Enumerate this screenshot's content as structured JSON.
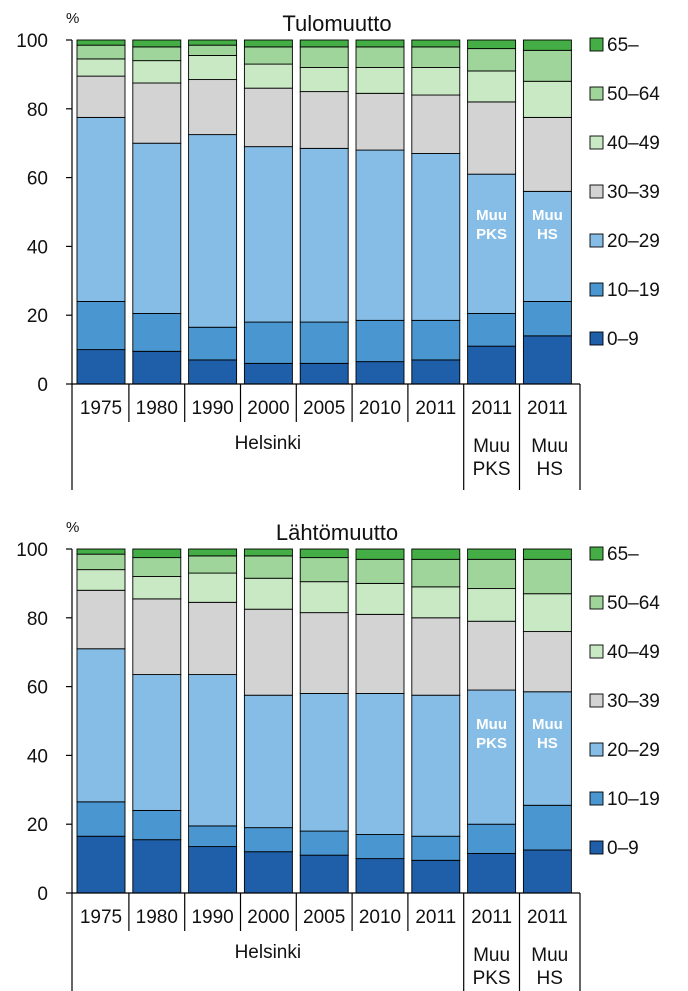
{
  "colors": {
    "0–9": "#1f5ea8",
    "10–19": "#4a96d1",
    "20–29": "#86bde6",
    "30–39": "#d3d3d3",
    "40–49": "#c9e8c4",
    "50–64": "#9fd49a",
    "65–": "#45ad45"
  },
  "chart_data": [
    {
      "type": "bar",
      "stacked": true,
      "title": "Tulomuutto",
      "ylabel": "%",
      "ylim": [
        0,
        100
      ],
      "yticks": [
        "0",
        "20",
        "40",
        "60",
        "80",
        "100"
      ],
      "categories": [
        "1975",
        "1980",
        "1990",
        "2000",
        "2005",
        "2010",
        "2011",
        "2011",
        "2011"
      ],
      "groups": [
        {
          "label": "Helsinki",
          "span": 7
        },
        {
          "label": "Muu\nPKS",
          "span": 1
        },
        {
          "label": "Muu\nHS",
          "span": 1
        }
      ],
      "bar_annotations": [
        {
          "bar": 7,
          "text": "Muu\nPKS"
        },
        {
          "bar": 8,
          "text": "Muu\nHS"
        }
      ],
      "legend_position": "right",
      "series": [
        {
          "name": "0–9",
          "values": [
            10,
            9.5,
            7,
            6,
            6,
            6.5,
            7,
            11,
            14
          ]
        },
        {
          "name": "10–19",
          "values": [
            14,
            11,
            9.5,
            12,
            12,
            12,
            11.5,
            9.5,
            10
          ]
        },
        {
          "name": "20–29",
          "values": [
            53.5,
            49.5,
            56,
            51,
            50.5,
            49.5,
            48.5,
            40.5,
            32
          ]
        },
        {
          "name": "30–39",
          "values": [
            12,
            17.5,
            16,
            17,
            16.5,
            16.5,
            17,
            21,
            21.5
          ]
        },
        {
          "name": "40–49",
          "values": [
            5,
            6.5,
            7,
            7,
            7,
            7.5,
            8,
            9,
            10.5
          ]
        },
        {
          "name": "50–64",
          "values": [
            4,
            4,
            3,
            5,
            6,
            6,
            6,
            6.5,
            9
          ]
        },
        {
          "name": "65–",
          "values": [
            1.5,
            2,
            1.5,
            2,
            2,
            2,
            2,
            2.5,
            3
          ]
        }
      ]
    },
    {
      "type": "bar",
      "stacked": true,
      "title": "Lähtömuutto",
      "ylabel": "%",
      "ylim": [
        0,
        100
      ],
      "yticks": [
        "0",
        "20",
        "40",
        "60",
        "80",
        "100"
      ],
      "categories": [
        "1975",
        "1980",
        "1990",
        "2000",
        "2005",
        "2010",
        "2011",
        "2011",
        "2011"
      ],
      "groups": [
        {
          "label": "Helsinki",
          "span": 7
        },
        {
          "label": "Muu\nPKS",
          "span": 1
        },
        {
          "label": "Muu\nHS",
          "span": 1
        }
      ],
      "bar_annotations": [
        {
          "bar": 7,
          "text": "Muu\nPKS"
        },
        {
          "bar": 8,
          "text": "Muu\nHS"
        }
      ],
      "legend_position": "right",
      "series": [
        {
          "name": "0–9",
          "values": [
            16.5,
            15.5,
            13.5,
            12,
            11,
            10,
            9.5,
            11.5,
            12.5
          ]
        },
        {
          "name": "10–19",
          "values": [
            10,
            8.5,
            6,
            7,
            7,
            7,
            7,
            8.5,
            13
          ]
        },
        {
          "name": "20–29",
          "values": [
            44.5,
            39.5,
            44,
            38.5,
            40,
            41,
            41,
            39,
            33
          ]
        },
        {
          "name": "30–39",
          "values": [
            17,
            22,
            21,
            25,
            23.5,
            23,
            22.5,
            20,
            17.5
          ]
        },
        {
          "name": "40–49",
          "values": [
            6,
            6.5,
            8.5,
            9,
            9,
            9,
            9,
            9.5,
            11
          ]
        },
        {
          "name": "50–64",
          "values": [
            4.5,
            5.5,
            5,
            6.5,
            7,
            7,
            8,
            8.5,
            10
          ]
        },
        {
          "name": "65–",
          "values": [
            1.5,
            2.5,
            2,
            2,
            2.5,
            3,
            3,
            3,
            3
          ]
        }
      ]
    }
  ]
}
